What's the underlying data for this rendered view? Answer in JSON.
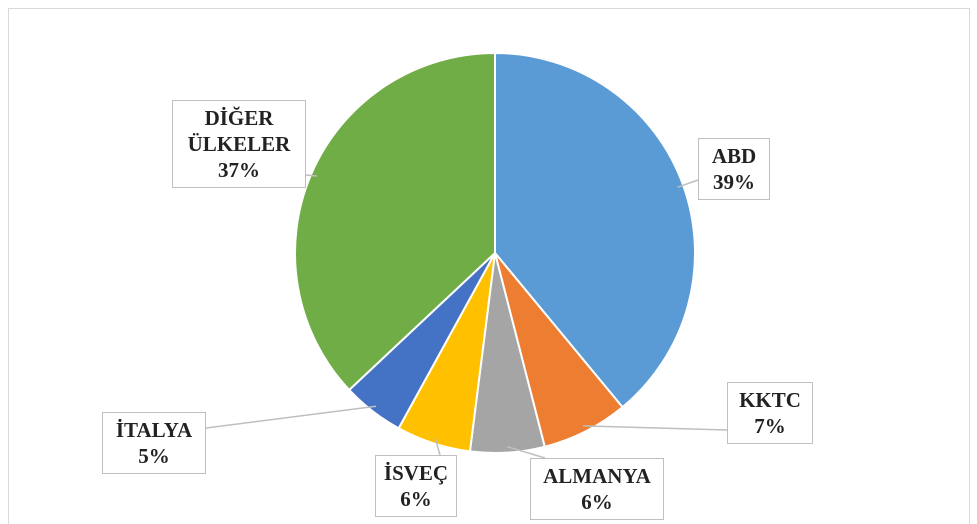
{
  "chart_data": {
    "type": "pie",
    "categories": [
      "ABD",
      "KKTC",
      "ALMANYA",
      "İSVEÇ",
      "İTALYA",
      "DİĞER ÜLKELER"
    ],
    "values": [
      39,
      7,
      6,
      6,
      5,
      37
    ],
    "value_labels": [
      "39%",
      "7%",
      "6%",
      "6%",
      "5%",
      "37%"
    ],
    "colors": [
      "#5b9bd5",
      "#ed7d31",
      "#a5a5a5",
      "#ffc000",
      "#4472c4",
      "#70ad47"
    ]
  }
}
